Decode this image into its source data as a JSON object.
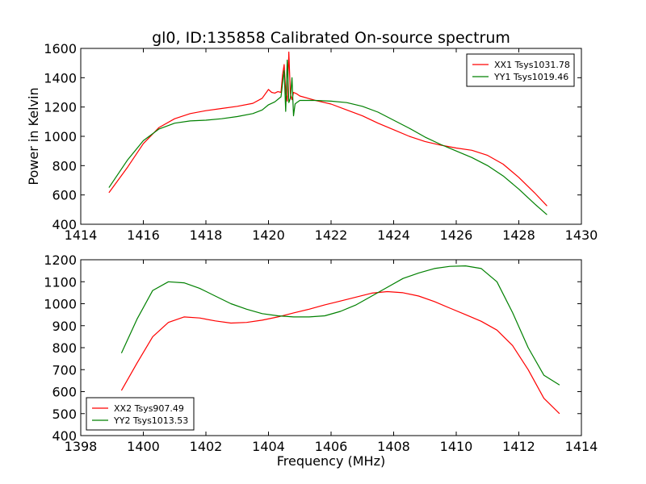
{
  "chart_data": [
    {
      "type": "line",
      "title": "gl0, ID:135858 Calibrated On-source spectrum",
      "xlabel": "",
      "ylabel": "Power in Kelvin",
      "xlim": [
        1414,
        1430
      ],
      "ylim": [
        400,
        1600
      ],
      "xticks": [
        1414,
        1416,
        1418,
        1420,
        1422,
        1424,
        1426,
        1428,
        1430
      ],
      "yticks": [
        400,
        600,
        800,
        1000,
        1200,
        1400,
        1600
      ],
      "legend_position": "top-right",
      "series": [
        {
          "name": "XX1 Tsys1031.78",
          "color": "#ff0000",
          "x": [
            1414.9,
            1415.5,
            1416,
            1416.5,
            1417,
            1417.5,
            1418,
            1418.5,
            1419,
            1419.5,
            1419.8,
            1420,
            1420.1,
            1420.2,
            1420.3,
            1420.4,
            1420.45,
            1420.5,
            1420.55,
            1420.6,
            1420.65,
            1420.7,
            1420.75,
            1420.8,
            1420.9,
            1421,
            1421.5,
            1422,
            1422.5,
            1423,
            1423.5,
            1424,
            1424.5,
            1425,
            1425.5,
            1426,
            1426.5,
            1427,
            1427.5,
            1428,
            1428.5,
            1428.9
          ],
          "y": [
            615,
            790,
            950,
            1060,
            1120,
            1155,
            1175,
            1190,
            1205,
            1225,
            1260,
            1320,
            1300,
            1295,
            1305,
            1300,
            1420,
            1490,
            1300,
            1240,
            1575,
            1290,
            1250,
            1300,
            1290,
            1275,
            1245,
            1220,
            1180,
            1140,
            1090,
            1045,
            1000,
            965,
            940,
            920,
            905,
            870,
            810,
            720,
            615,
            525
          ]
        },
        {
          "name": "YY1 Tsys1019.46",
          "color": "#008000",
          "x": [
            1414.9,
            1415.5,
            1416,
            1416.5,
            1417,
            1417.5,
            1418,
            1418.5,
            1419,
            1419.5,
            1419.8,
            1420,
            1420.2,
            1420.4,
            1420.45,
            1420.5,
            1420.55,
            1420.6,
            1420.65,
            1420.7,
            1420.75,
            1420.8,
            1420.85,
            1420.9,
            1421,
            1421.5,
            1422,
            1422.5,
            1423,
            1423.5,
            1424,
            1424.5,
            1425,
            1425.5,
            1426,
            1426.5,
            1427,
            1427.5,
            1428,
            1428.5,
            1428.9
          ],
          "y": [
            650,
            840,
            970,
            1050,
            1090,
            1105,
            1110,
            1120,
            1135,
            1155,
            1180,
            1215,
            1235,
            1270,
            1360,
            1450,
            1170,
            1520,
            1230,
            1260,
            1400,
            1140,
            1220,
            1230,
            1245,
            1245,
            1240,
            1230,
            1205,
            1165,
            1110,
            1055,
            995,
            945,
            900,
            855,
            800,
            730,
            640,
            540,
            465
          ]
        }
      ]
    },
    {
      "type": "line",
      "title": "",
      "xlabel": "Frequency (MHz)",
      "ylabel": "",
      "xlim": [
        1398,
        1414
      ],
      "ylim": [
        400,
        1200
      ],
      "xticks": [
        1398,
        1400,
        1402,
        1404,
        1406,
        1408,
        1410,
        1412,
        1414
      ],
      "yticks": [
        400,
        500,
        600,
        700,
        800,
        900,
        1000,
        1100,
        1200
      ],
      "legend_position": "bottom-left",
      "series": [
        {
          "name": "XX2 Tsys907.49",
          "color": "#ff0000",
          "x": [
            1399.3,
            1399.8,
            1400.3,
            1400.8,
            1401.3,
            1401.8,
            1402.3,
            1402.8,
            1403.3,
            1403.8,
            1404.3,
            1404.8,
            1405.3,
            1405.8,
            1406.3,
            1406.8,
            1407.3,
            1407.8,
            1408.3,
            1408.8,
            1409.3,
            1409.8,
            1410.3,
            1410.8,
            1411.3,
            1411.8,
            1412.3,
            1412.8,
            1413.3
          ],
          "y": [
            605,
            730,
            850,
            915,
            940,
            935,
            922,
            912,
            915,
            925,
            940,
            958,
            975,
            995,
            1012,
            1030,
            1048,
            1055,
            1050,
            1035,
            1010,
            980,
            950,
            920,
            880,
            810,
            700,
            570,
            500
          ]
        },
        {
          "name": "YY2 Tsys1013.53",
          "color": "#008000",
          "x": [
            1399.3,
            1399.8,
            1400.3,
            1400.8,
            1401.3,
            1401.8,
            1402.3,
            1402.8,
            1403.3,
            1403.8,
            1404.3,
            1404.8,
            1405.3,
            1405.8,
            1406.3,
            1406.8,
            1407.3,
            1407.8,
            1408.3,
            1408.8,
            1409.3,
            1409.8,
            1410.3,
            1410.8,
            1411.3,
            1411.8,
            1412.3,
            1412.8,
            1413.3
          ],
          "y": [
            775,
            930,
            1060,
            1100,
            1095,
            1070,
            1035,
            1000,
            975,
            955,
            945,
            940,
            940,
            945,
            965,
            995,
            1035,
            1075,
            1115,
            1140,
            1160,
            1170,
            1172,
            1160,
            1100,
            960,
            800,
            675,
            630
          ]
        }
      ]
    }
  ]
}
